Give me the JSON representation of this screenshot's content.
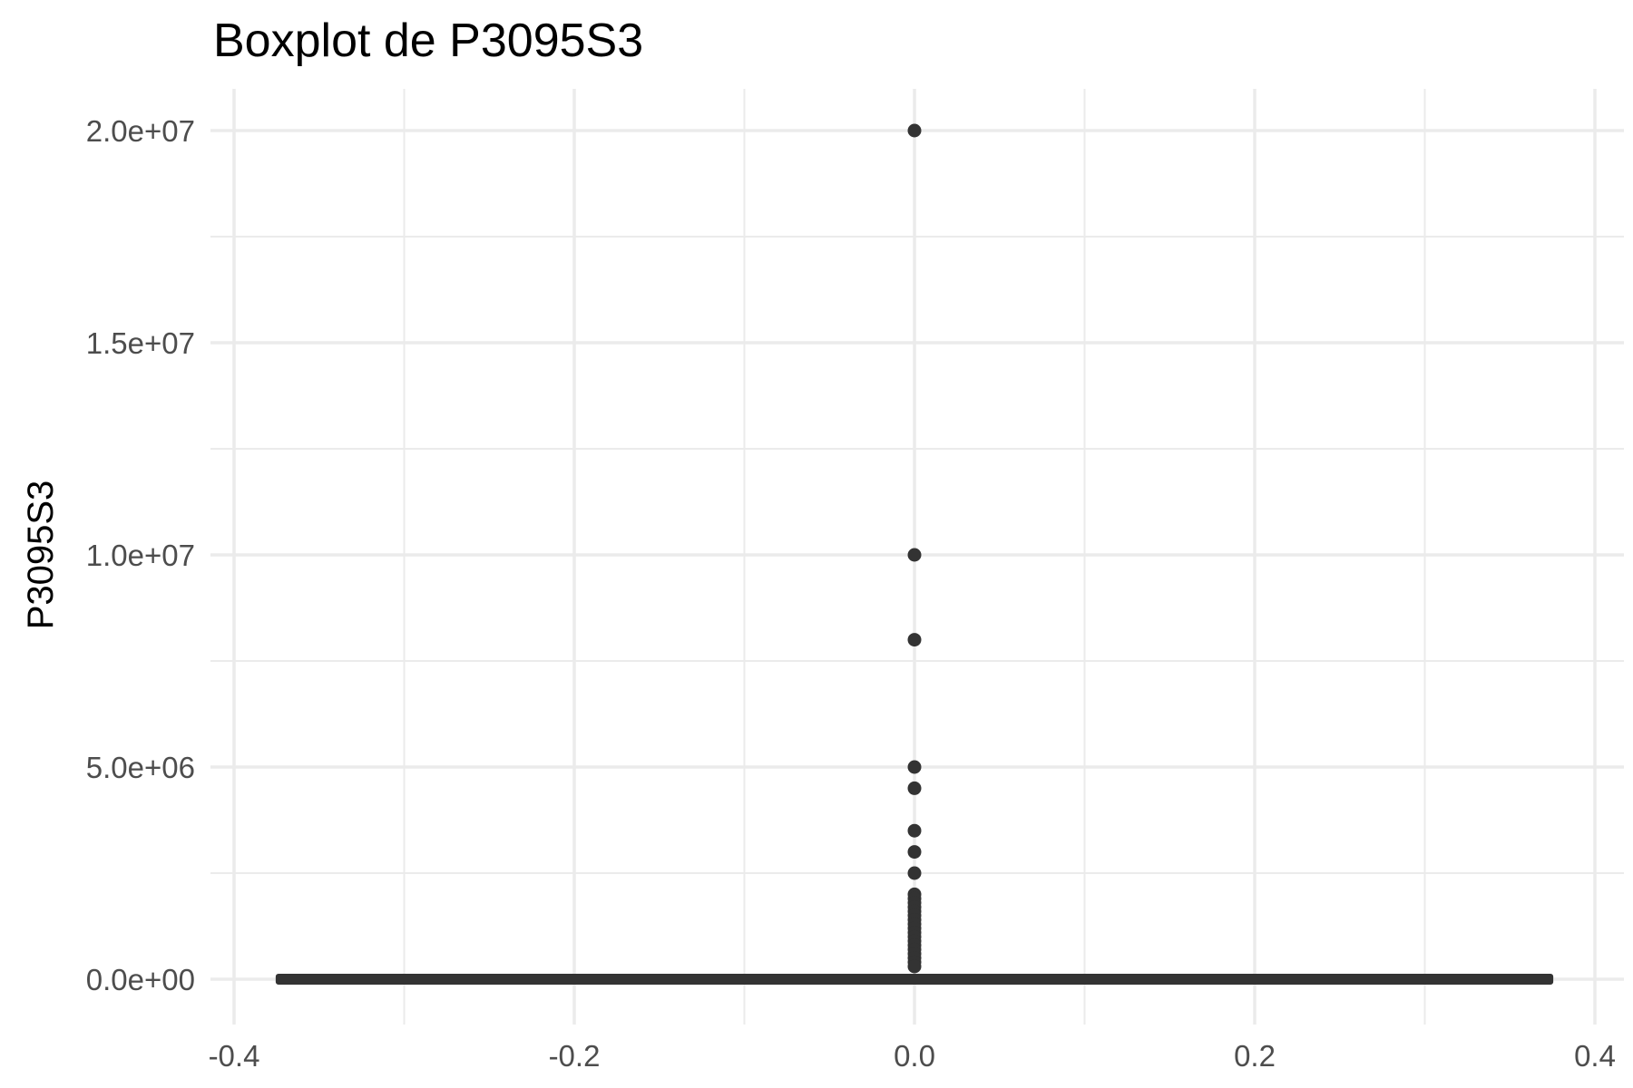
{
  "chart_data": {
    "type": "boxplot",
    "title": "Boxplot de P3095S3",
    "xlabel": "",
    "ylabel": "P3095S3",
    "xlim": [
      -0.4,
      0.4
    ],
    "ylim": [
      0,
      20000000
    ],
    "x_ticks": [
      -0.4,
      -0.2,
      0.0,
      0.2,
      0.4
    ],
    "x_tick_labels": [
      "-0.4",
      "-0.2",
      "0.0",
      "0.2",
      "0.4"
    ],
    "y_ticks": [
      0,
      5000000,
      10000000,
      15000000,
      20000000
    ],
    "y_tick_labels": [
      "0.0e+00",
      "5.0e+06",
      "1.0e+07",
      "1.5e+07",
      "2.0e+07"
    ],
    "grid": true,
    "box": {
      "x": 0.0,
      "x_range": [
        -0.375,
        0.375
      ],
      "q1": 0,
      "median": 0,
      "q3": 0,
      "whisker_low": 0,
      "whisker_high": 0
    },
    "outliers": [
      20000000,
      10000000,
      8000000,
      5000000,
      4500000,
      3500000,
      3000000,
      2500000,
      2000000,
      1900000,
      1800000,
      1700000,
      1600000,
      1500000,
      1400000,
      1300000,
      1200000,
      1100000,
      1000000,
      900000,
      800000,
      700000,
      600000,
      500000,
      400000,
      300000
    ],
    "colors": {
      "marks": "#333333",
      "grid": "#ebebeb",
      "tick_text": "#4d4d4d"
    }
  }
}
